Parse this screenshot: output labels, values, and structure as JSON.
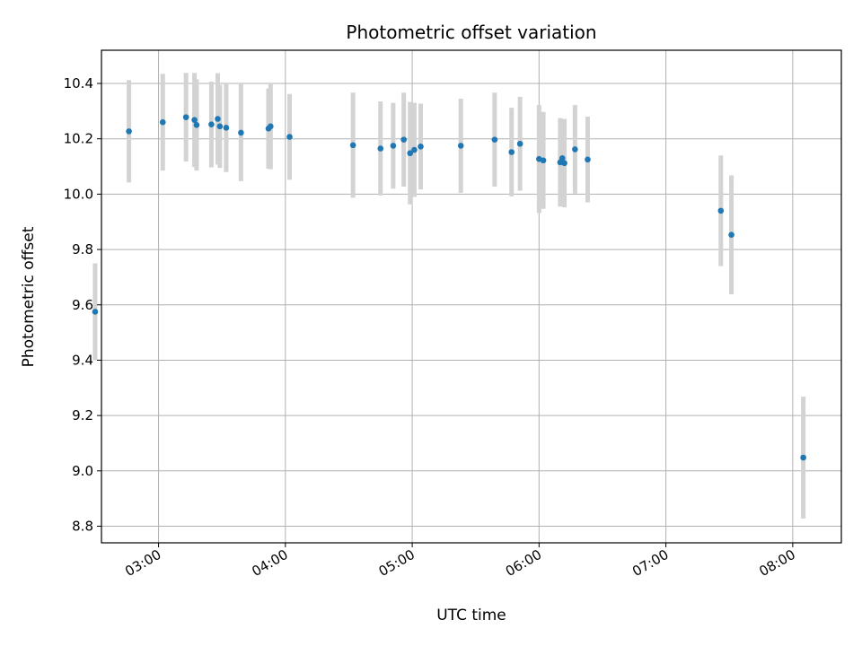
{
  "chart_data": {
    "type": "scatter",
    "title": "Photometric offset variation",
    "xlabel": "UTC time",
    "ylabel": "Photometric offset",
    "x_axis_kind": "time",
    "xlim": [
      "02:33",
      "08:23"
    ],
    "ylim": [
      8.74,
      10.52
    ],
    "x_ticks": [
      "03:00",
      "04:00",
      "05:00",
      "06:00",
      "07:00",
      "08:00"
    ],
    "y_ticks": [
      "8.8",
      "9.0",
      "9.2",
      "9.4",
      "9.6",
      "9.8",
      "10.0",
      "10.2",
      "10.4"
    ],
    "grid": true,
    "point_color": "#1f77b4",
    "errorbar_color": "#d3d3d3",
    "points": [
      {
        "x": "02:30",
        "y": 9.575,
        "err": 0.175
      },
      {
        "x": "02:46",
        "y": 10.227,
        "err": 0.185
      },
      {
        "x": "03:02",
        "y": 10.26,
        "err": 0.175
      },
      {
        "x": "03:13",
        "y": 10.278,
        "err": 0.16
      },
      {
        "x": "03:17",
        "y": 10.268,
        "err": 0.17
      },
      {
        "x": "03:18",
        "y": 10.25,
        "err": 0.165
      },
      {
        "x": "03:25",
        "y": 10.252,
        "err": 0.155
      },
      {
        "x": "03:28",
        "y": 10.272,
        "err": 0.165
      },
      {
        "x": "03:29",
        "y": 10.245,
        "err": 0.15
      },
      {
        "x": "03:32",
        "y": 10.24,
        "err": 0.16
      },
      {
        "x": "03:39",
        "y": 10.222,
        "err": 0.175
      },
      {
        "x": "03:52",
        "y": 10.237,
        "err": 0.145
      },
      {
        "x": "03:53",
        "y": 10.245,
        "err": 0.155
      },
      {
        "x": "04:02",
        "y": 10.207,
        "err": 0.155
      },
      {
        "x": "04:32",
        "y": 10.177,
        "err": 0.19
      },
      {
        "x": "04:45",
        "y": 10.165,
        "err": 0.17
      },
      {
        "x": "04:51",
        "y": 10.175,
        "err": 0.155
      },
      {
        "x": "04:56",
        "y": 10.197,
        "err": 0.17
      },
      {
        "x": "04:59",
        "y": 10.148,
        "err": 0.185
      },
      {
        "x": "05:01",
        "y": 10.16,
        "err": 0.17
      },
      {
        "x": "05:04",
        "y": 10.172,
        "err": 0.155
      },
      {
        "x": "05:23",
        "y": 10.175,
        "err": 0.17
      },
      {
        "x": "05:39",
        "y": 10.197,
        "err": 0.17
      },
      {
        "x": "05:47",
        "y": 10.152,
        "err": 0.16
      },
      {
        "x": "05:51",
        "y": 10.182,
        "err": 0.17
      },
      {
        "x": "06:00",
        "y": 10.127,
        "err": 0.195
      },
      {
        "x": "06:02",
        "y": 10.122,
        "err": 0.175
      },
      {
        "x": "06:10",
        "y": 10.115,
        "err": 0.16
      },
      {
        "x": "06:11",
        "y": 10.13,
        "err": 0.14
      },
      {
        "x": "06:12",
        "y": 10.112,
        "err": 0.16
      },
      {
        "x": "06:17",
        "y": 10.162,
        "err": 0.16
      },
      {
        "x": "06:23",
        "y": 10.125,
        "err": 0.155
      },
      {
        "x": "07:26",
        "y": 9.94,
        "err": 0.2
      },
      {
        "x": "07:31",
        "y": 9.853,
        "err": 0.215
      },
      {
        "x": "08:05",
        "y": 9.048,
        "err": 0.22
      }
    ]
  }
}
